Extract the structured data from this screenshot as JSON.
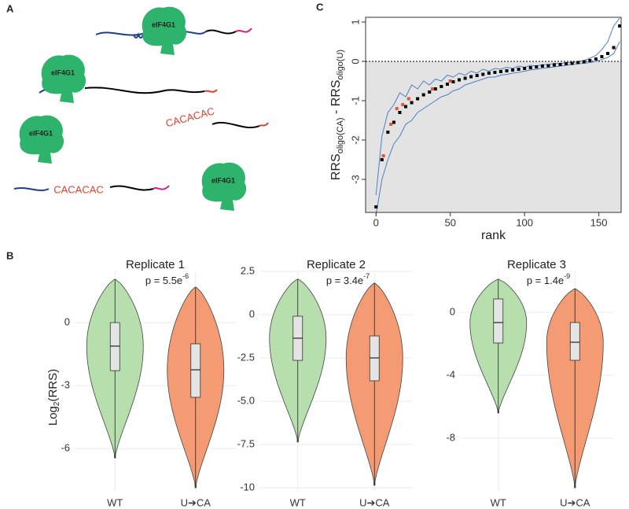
{
  "panel_labels": [
    "A",
    "B",
    "C"
  ],
  "diagram": {
    "proteins": [
      "eIF4G1",
      "eIF4G1",
      "eIF4G1",
      "eIF4G1"
    ],
    "motifs": [
      "CACACAC",
      "CACACAC"
    ]
  },
  "chart_data": [
    {
      "type": "rank",
      "xlabel": "rank",
      "ylabel_parts": [
        "RRS",
        "oligo(CA)",
        " - RRS",
        "oligo(U)"
      ],
      "xlim": [
        -7,
        165
      ],
      "ylim": [
        -3.84,
        1.12
      ],
      "xticks": [
        0,
        50,
        100,
        150
      ],
      "yticks": [
        -3,
        -2,
        -1,
        0,
        1
      ],
      "hline": 0,
      "x": [
        0,
        4,
        8,
        12,
        16,
        20,
        24,
        28,
        32,
        36,
        40,
        44,
        48,
        52,
        56,
        60,
        64,
        68,
        72,
        76,
        80,
        84,
        88,
        92,
        96,
        100,
        104,
        108,
        112,
        116,
        120,
        124,
        128,
        132,
        136,
        140,
        144,
        148,
        152,
        156,
        160,
        164
      ],
      "series": [
        {
          "color": "#4a7fc1",
          "mode": "line",
          "values": [
            -3.4,
            -1.9,
            -1.3,
            -1.1,
            -0.8,
            -0.9,
            -0.6,
            -0.7,
            -0.5,
            -0.6,
            -0.45,
            -0.5,
            -0.35,
            -0.4,
            -0.3,
            -0.35,
            -0.25,
            -0.3,
            -0.2,
            -0.25,
            -0.18,
            -0.2,
            -0.15,
            -0.18,
            -0.12,
            -0.15,
            -0.1,
            -0.12,
            -0.08,
            -0.09,
            -0.05,
            -0.06,
            -0.03,
            -0.04,
            0,
            0.02,
            0.08,
            0.15,
            0.3,
            0.5,
            0.9,
            1.1
          ]
        },
        {
          "color": "#4a7fc1",
          "mode": "line",
          "values": [
            -3.9,
            -3.0,
            -2.5,
            -2.1,
            -1.9,
            -1.6,
            -1.5,
            -1.3,
            -1.2,
            -1.1,
            -1.0,
            -0.9,
            -0.85,
            -0.75,
            -0.7,
            -0.6,
            -0.55,
            -0.5,
            -0.45,
            -0.4,
            -0.4,
            -0.35,
            -0.33,
            -0.3,
            -0.28,
            -0.25,
            -0.22,
            -0.2,
            -0.18,
            -0.16,
            -0.14,
            -0.12,
            -0.1,
            -0.08,
            -0.06,
            -0.05,
            -0.03,
            0,
            0.05,
            0.1,
            0.2,
            0.5
          ]
        },
        {
          "color": "#000000",
          "mode": "points",
          "values": [
            -3.7,
            -2.5,
            -1.8,
            -1.55,
            -1.3,
            -1.15,
            -1.05,
            -0.95,
            -0.85,
            -0.78,
            -0.7,
            -0.64,
            -0.58,
            -0.52,
            -0.47,
            -0.43,
            -0.39,
            -0.36,
            -0.33,
            -0.3,
            -0.28,
            -0.26,
            -0.24,
            -0.22,
            -0.2,
            -0.18,
            -0.16,
            -0.14,
            -0.12,
            -0.11,
            -0.09,
            -0.08,
            -0.06,
            -0.05,
            -0.03,
            -0.01,
            0.02,
            0.06,
            0.12,
            0.2,
            0.35,
            0.9
          ]
        }
      ],
      "highlight": {
        "color": "#e8553a",
        "x": [
          5,
          10,
          14,
          18,
          22,
          38,
          50
        ],
        "values": [
          -2.4,
          -1.6,
          -1.2,
          -1.1,
          -0.95,
          -0.7,
          -0.5
        ]
      }
    },
    {
      "type": "violin",
      "title": "Replicate 1",
      "p_text": "p = 5.5e",
      "p_exp": "-6",
      "ylabel_parts": [
        "Log",
        "2",
        "(RRS)"
      ],
      "categories": [
        "WT",
        "U➔CA"
      ],
      "colors": [
        "#b7dfae",
        "#f59b73"
      ],
      "ylim": [
        -8.06,
        2.44
      ],
      "yticks": [
        -6,
        -3,
        0
      ],
      "boxes": [
        {
          "min": -6.45,
          "q1": -2.29,
          "median": -1.12,
          "q3": 0,
          "max": 2.06
        },
        {
          "min": -7.87,
          "q1": -3.56,
          "median": -2.25,
          "q3": -1.01,
          "max": 1.69
        }
      ]
    },
    {
      "type": "violin",
      "title": "Replicate 2",
      "p_text": "p = 3.4e",
      "p_exp": "-7",
      "categories": [
        "WT",
        "U➔CA"
      ],
      "colors": [
        "#b7dfae",
        "#f59b73"
      ],
      "ylim": [
        -10.23,
        2.5
      ],
      "yticks": [
        -10,
        {
          "value": -7.5,
          "label": "-7.5"
        },
        {
          "value": -5,
          "label": "-5.0"
        },
        -2.5,
        0,
        2.5
      ],
      "boxes": [
        {
          "min": -7.36,
          "q1": -2.64,
          "median": -1.36,
          "q3": -0.09,
          "max": 2.05
        },
        {
          "min": -9.86,
          "q1": -3.82,
          "median": -2.5,
          "q3": -1.23,
          "max": 1.82
        }
      ]
    },
    {
      "type": "violin",
      "title": "Replicate 3",
      "p_text": "p = 1.4e",
      "p_exp": "-9",
      "categories": [
        "WT",
        "U➔CA"
      ],
      "colors": [
        "#b7dfae",
        "#f59b73"
      ],
      "ylim": [
        -11.4,
        2.6
      ],
      "yticks": [
        -8,
        -4,
        0
      ],
      "boxes": [
        {
          "min": -6.4,
          "q1": -1.95,
          "median": -0.65,
          "q3": 0.85,
          "max": 2.1
        },
        {
          "min": -11.15,
          "q1": -3.05,
          "median": -1.9,
          "q3": -0.65,
          "max": 1.5
        }
      ]
    }
  ]
}
